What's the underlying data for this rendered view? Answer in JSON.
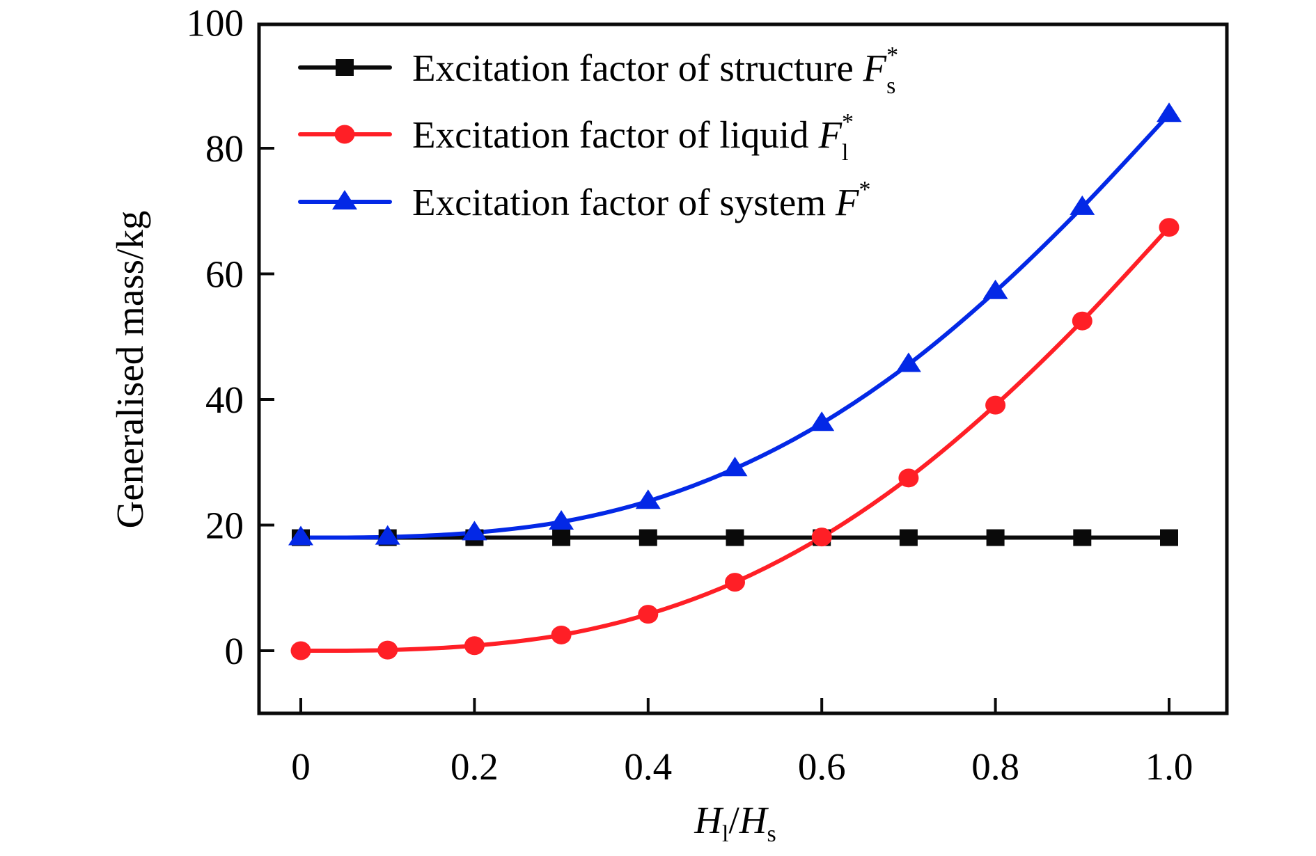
{
  "chart_data": {
    "type": "line",
    "title": "",
    "xlabel": {
      "main": "H",
      "sub1": "l",
      "sep": "/",
      "main2": "H",
      "sub2": "s"
    },
    "ylabel": "Generalised mass/kg",
    "xlim": [
      -0.05,
      1.05
    ],
    "ylim": [
      -10,
      100
    ],
    "xticks": [
      0,
      0.2,
      0.4,
      0.6,
      0.8,
      1.0
    ],
    "xtick_labels": [
      "0",
      "0.2",
      "0.4",
      "0.6",
      "0.8",
      "1.0"
    ],
    "yticks": [
      0,
      20,
      40,
      60,
      80,
      100
    ],
    "ytick_labels": [
      "0",
      "20",
      "40",
      "60",
      "80",
      "100"
    ],
    "grid": false,
    "legend_position": "top-left",
    "x": [
      0,
      0.1,
      0.2,
      0.3,
      0.4,
      0.5,
      0.6,
      0.7,
      0.8,
      0.9,
      1.0
    ],
    "series": [
      {
        "name": "Excitation factor of structure F*s",
        "label_text": "Excitation factor of structure ",
        "symbol": "F",
        "sup": "*",
        "sub": "s",
        "color": "#0a0a0a",
        "marker": "square",
        "values": [
          18,
          18,
          18,
          18,
          18,
          18,
          18,
          18,
          18,
          18,
          18
        ]
      },
      {
        "name": "Excitation factor of liquid F*l",
        "label_text": "Excitation factor of liquid ",
        "symbol": "F",
        "sup": "*",
        "sub": "l",
        "color": "#ff1f26",
        "marker": "circle",
        "values": [
          0,
          0.1,
          0.8,
          2.5,
          5.8,
          10.9,
          18.1,
          27.5,
          39.1,
          52.5,
          67.4
        ]
      },
      {
        "name": "Excitation factor of system F*",
        "label_text": "Excitation factor of system ",
        "symbol": "F",
        "sup": "*",
        "sub": "",
        "color": "#0328e6",
        "marker": "triangle",
        "values": [
          18,
          18.1,
          18.8,
          20.5,
          23.8,
          29.0,
          36.2,
          45.6,
          57.2,
          70.6,
          85.4
        ]
      }
    ]
  }
}
